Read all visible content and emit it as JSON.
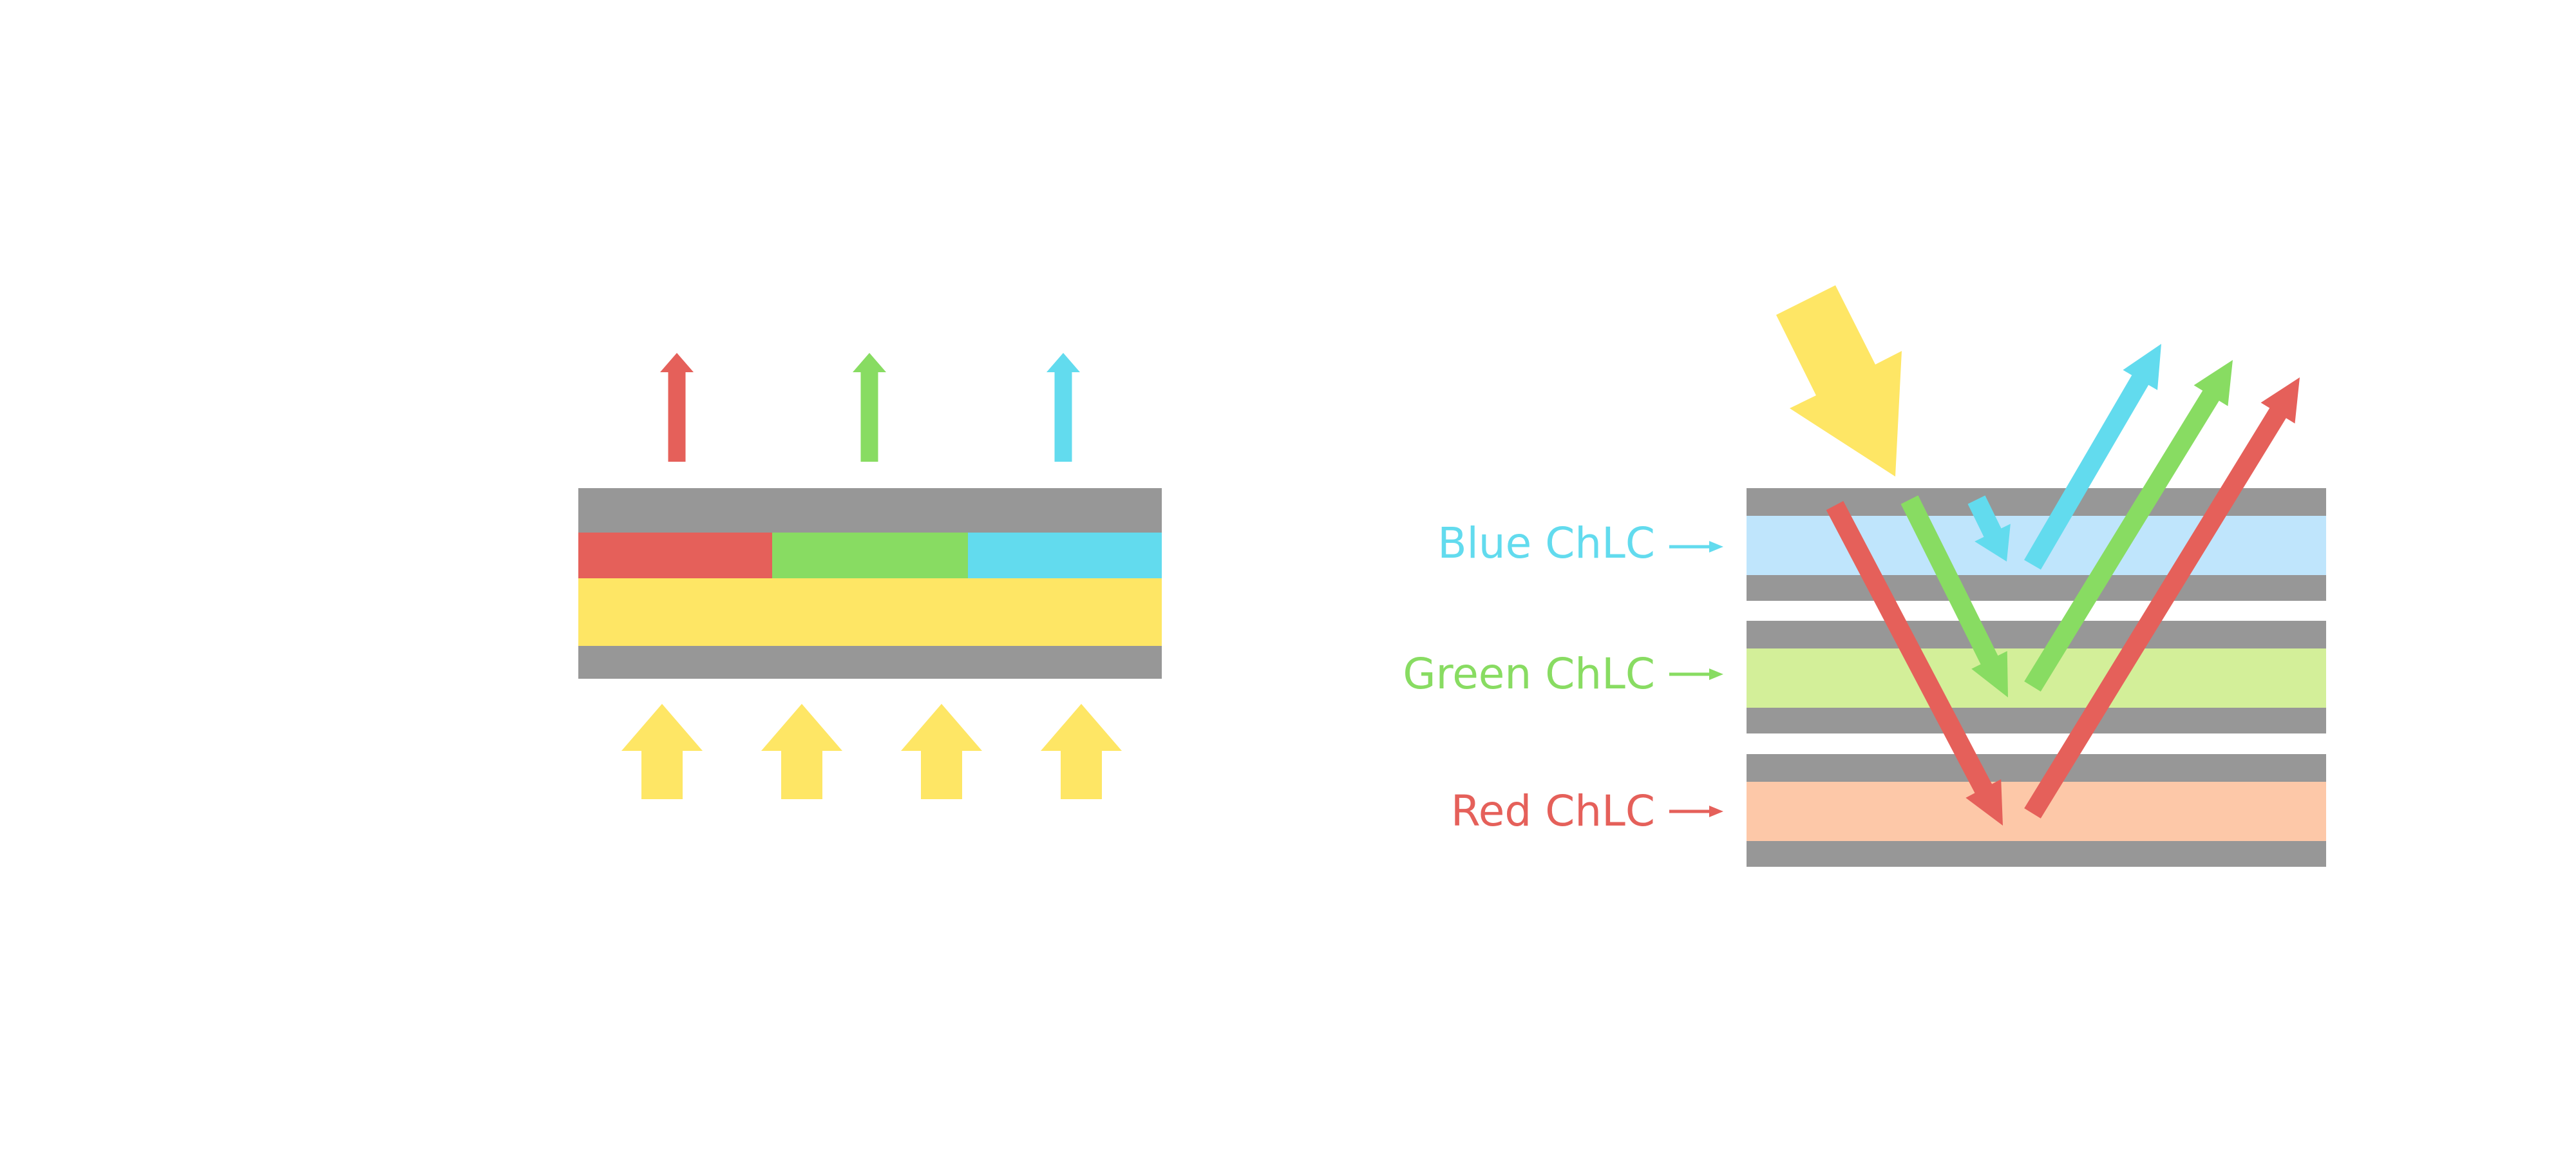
{
  "colors": {
    "substrate": "#979797",
    "red": "#e5605a",
    "green": "#88dc62",
    "blue": "#62dbee",
    "yellow": "#fee665",
    "blue_layer": "#bfe5fc",
    "green_layer": "#d3ef99",
    "red_layer": "#fdc8a8"
  },
  "left_diagram": {
    "color_filter": [
      "red",
      "green",
      "blue"
    ],
    "emitted_light": [
      "red",
      "green",
      "blue"
    ],
    "backlight_arrows": 4
  },
  "right_diagram": {
    "layers": [
      {
        "label": "Blue ChLC",
        "color": "#62dbee",
        "fill": "#bfe5fc"
      },
      {
        "label": "Green ChLC",
        "color": "#88dc62",
        "fill": "#d3ef99"
      },
      {
        "label": "Red ChLC",
        "color": "#e5605a",
        "fill": "#fdc8a8"
      }
    ]
  }
}
